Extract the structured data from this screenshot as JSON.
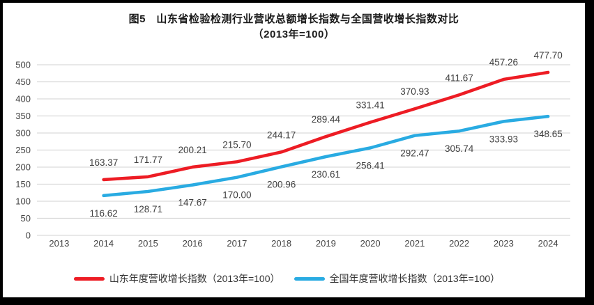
{
  "frame": {
    "background": "#000000",
    "page_background": "#ffffff"
  },
  "title": {
    "line1": "图5　山东省检验检测行业营收总额增长指数与全国营收增长指数对比",
    "line2": "（2013年=100）"
  },
  "chart_data": {
    "type": "line",
    "categories": [
      "2013",
      "2014",
      "2015",
      "2016",
      "2017",
      "2018",
      "2019",
      "2020",
      "2021",
      "2022",
      "2023",
      "2024"
    ],
    "series": [
      {
        "name": "山东年度营收增长指数（2013年=100）",
        "color": "#ED1C24",
        "values": [
          null,
          163.37,
          171.77,
          200.21,
          215.7,
          244.17,
          289.44,
          331.41,
          370.93,
          411.67,
          457.26,
          477.7
        ]
      },
      {
        "name": "全国年度营收增长指数（2013年=100）",
        "color": "#29ABE2",
        "values": [
          null,
          116.62,
          128.71,
          147.67,
          170.0,
          200.96,
          230.61,
          256.41,
          292.47,
          305.74,
          333.93,
          348.65
        ]
      }
    ],
    "ylim": [
      0,
      500
    ],
    "y_ticks": [
      0,
      50,
      100,
      150,
      200,
      250,
      300,
      350,
      400,
      450,
      500
    ],
    "grid": "horizontal",
    "legend_position": "bottom",
    "data_labels": true
  },
  "colors": {
    "grid": "#d9d9d9",
    "tick_label": "#444444",
    "data_label": "#404040"
  }
}
